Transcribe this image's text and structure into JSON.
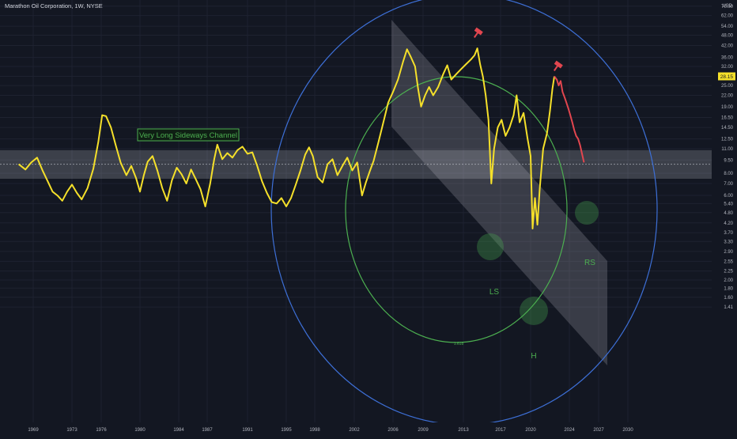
{
  "header": {
    "title": "Marathon Oil Corporation, 1W, NYSE"
  },
  "chart_data": {
    "type": "line",
    "title": "Marathon Oil Corporation, 1W, NYSE",
    "currency": "USD",
    "y_scale": "log",
    "x_ticks": [
      "1969",
      "1973",
      "1976",
      "1980",
      "1984",
      "1987",
      "1991",
      "1995",
      "1998",
      "2002",
      "2006",
      "2009",
      "2013",
      "2017",
      "2020",
      "2024",
      "2027",
      "2030"
    ],
    "y_ticks": [
      "70.00",
      "62.00",
      "54.00",
      "48.00",
      "42.00",
      "36.00",
      "32.00",
      "28.15",
      "25.00",
      "22.00",
      "19.00",
      "16.50",
      "14.50",
      "12.50",
      "11.00",
      "9.50",
      "8.00",
      "7.00",
      "6.00",
      "5.40",
      "4.80",
      "4.20",
      "3.70",
      "3.30",
      "2.90",
      "2.55",
      "2.25",
      "2.00",
      "1.80",
      "1.60",
      "1.41"
    ],
    "last_price": "28.15",
    "colors": {
      "background": "#131722",
      "price_line": "#f5e02a",
      "recent_line": "#e2464f",
      "outer_circle": "#3d6fd6",
      "inner_circle": "#4caf50",
      "channel_band": "#d1d4dc",
      "annotation": "#4caf50",
      "marker": "#e2464f",
      "price_tag": "#f5e02a"
    },
    "annotations": {
      "channel_label": "Very Long Sideways Channel",
      "left_shoulder": "LS",
      "head": "H",
      "right_shoulder": "RS",
      "small_label": "1.618"
    },
    "series": [
      {
        "values": [
          [
            1967.5,
            9.0
          ],
          [
            1968.2,
            8.4
          ],
          [
            1968.8,
            9.2
          ],
          [
            1969.4,
            9.8
          ],
          [
            1970.0,
            8.2
          ],
          [
            1970.5,
            7.2
          ],
          [
            1971.0,
            6.3
          ],
          [
            1971.5,
            6.0
          ],
          [
            1972.0,
            5.6
          ],
          [
            1972.5,
            6.3
          ],
          [
            1973.0,
            6.9
          ],
          [
            1973.5,
            6.2
          ],
          [
            1974.0,
            5.7
          ],
          [
            1974.6,
            6.6
          ],
          [
            1975.2,
            8.5
          ],
          [
            1975.7,
            12.0
          ],
          [
            1976.1,
            17.0
          ],
          [
            1976.5,
            16.8
          ],
          [
            1977.0,
            14.5
          ],
          [
            1977.5,
            11.5
          ],
          [
            1978.0,
            9.2
          ],
          [
            1978.6,
            7.8
          ],
          [
            1979.1,
            8.8
          ],
          [
            1979.6,
            7.5
          ],
          [
            1980.0,
            6.3
          ],
          [
            1980.4,
            7.8
          ],
          [
            1980.8,
            9.3
          ],
          [
            1981.3,
            10.0
          ],
          [
            1981.8,
            8.3
          ],
          [
            1982.3,
            6.6
          ],
          [
            1982.8,
            5.6
          ],
          [
            1983.3,
            7.3
          ],
          [
            1983.8,
            8.6
          ],
          [
            1984.3,
            7.9
          ],
          [
            1984.8,
            7.0
          ],
          [
            1985.3,
            8.4
          ],
          [
            1985.8,
            7.4
          ],
          [
            1986.3,
            6.5
          ],
          [
            1986.8,
            5.2
          ],
          [
            1987.3,
            7.0
          ],
          [
            1987.7,
            9.6
          ],
          [
            1988.0,
            11.6
          ],
          [
            1988.5,
            9.6
          ],
          [
            1989.0,
            10.4
          ],
          [
            1989.5,
            9.8
          ],
          [
            1990.0,
            10.8
          ],
          [
            1990.5,
            11.3
          ],
          [
            1991.0,
            10.3
          ],
          [
            1991.5,
            10.5
          ],
          [
            1992.0,
            8.8
          ],
          [
            1992.5,
            7.2
          ],
          [
            1993.0,
            6.2
          ],
          [
            1993.5,
            5.5
          ],
          [
            1994.0,
            5.4
          ],
          [
            1994.5,
            5.8
          ],
          [
            1995.0,
            5.2
          ],
          [
            1995.5,
            5.8
          ],
          [
            1996.0,
            6.9
          ],
          [
            1996.5,
            8.3
          ],
          [
            1997.0,
            10.2
          ],
          [
            1997.4,
            11.2
          ],
          [
            1997.8,
            10.0
          ],
          [
            1998.3,
            7.6
          ],
          [
            1998.8,
            7.1
          ],
          [
            1999.3,
            9.0
          ],
          [
            1999.8,
            9.6
          ],
          [
            2000.3,
            7.8
          ],
          [
            2000.8,
            8.8
          ],
          [
            2001.3,
            9.8
          ],
          [
            2001.8,
            8.3
          ],
          [
            2002.3,
            9.2
          ],
          [
            2002.8,
            6.0
          ],
          [
            2003.2,
            7.1
          ],
          [
            2003.6,
            8.2
          ],
          [
            2004.0,
            9.4
          ],
          [
            2004.5,
            12.0
          ],
          [
            2005.0,
            15.5
          ],
          [
            2005.5,
            20.0
          ],
          [
            2006.0,
            23.0
          ],
          [
            2006.5,
            27.0
          ],
          [
            2007.0,
            34.0
          ],
          [
            2007.4,
            40.0
          ],
          [
            2007.8,
            36.0
          ],
          [
            2008.2,
            32.0
          ],
          [
            2008.5,
            24.0
          ],
          [
            2008.8,
            19.0
          ],
          [
            2009.2,
            22.0
          ],
          [
            2009.6,
            24.5
          ],
          [
            2010.0,
            22.0
          ],
          [
            2010.5,
            24.5
          ],
          [
            2011.0,
            29.0
          ],
          [
            2011.4,
            32.5
          ],
          [
            2011.8,
            27.0
          ],
          [
            2012.3,
            29.0
          ],
          [
            2012.8,
            31.0
          ],
          [
            2013.3,
            33.0
          ],
          [
            2013.8,
            35.0
          ],
          [
            2014.2,
            37.0
          ],
          [
            2014.5,
            40.5
          ],
          [
            2014.8,
            33.0
          ],
          [
            2015.1,
            28.0
          ],
          [
            2015.4,
            22.0
          ],
          [
            2015.7,
            16.0
          ],
          [
            2016.0,
            7.0
          ],
          [
            2016.3,
            11.0
          ],
          [
            2016.7,
            14.5
          ],
          [
            2017.1,
            16.0
          ],
          [
            2017.5,
            13.0
          ],
          [
            2017.9,
            14.5
          ],
          [
            2018.3,
            17.0
          ],
          [
            2018.6,
            22.0
          ],
          [
            2018.9,
            15.5
          ],
          [
            2019.3,
            17.5
          ],
          [
            2019.7,
            12.5
          ],
          [
            2020.0,
            10.0
          ],
          [
            2020.2,
            3.9
          ],
          [
            2020.45,
            5.8
          ],
          [
            2020.7,
            4.1
          ],
          [
            2020.95,
            6.6
          ],
          [
            2021.3,
            11.0
          ],
          [
            2021.7,
            13.5
          ],
          [
            2022.0,
            18.0
          ],
          [
            2022.25,
            24.0
          ],
          [
            2022.45,
            28.15
          ]
        ]
      },
      {
        "values": [
          [
            2022.45,
            28.15
          ],
          [
            2022.7,
            27.0
          ],
          [
            2022.9,
            25.0
          ],
          [
            2023.1,
            26.5
          ],
          [
            2023.3,
            23.0
          ],
          [
            2023.5,
            21.5
          ],
          [
            2023.7,
            20.0
          ],
          [
            2023.9,
            18.5
          ],
          [
            2024.1,
            17.0
          ],
          [
            2024.3,
            15.5
          ],
          [
            2024.5,
            14.0
          ],
          [
            2024.7,
            13.0
          ],
          [
            2024.9,
            12.5
          ],
          [
            2025.1,
            11.5
          ],
          [
            2025.3,
            10.3
          ],
          [
            2025.5,
            9.2
          ]
        ]
      }
    ]
  }
}
